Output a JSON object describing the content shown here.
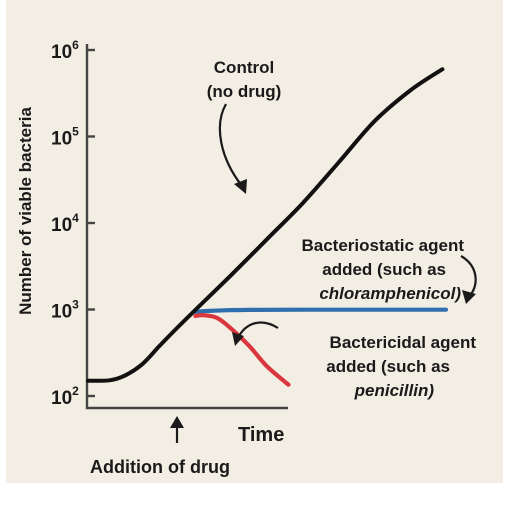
{
  "chart_data": {
    "type": "line",
    "title": "",
    "xlabel": "Time",
    "ylabel": "Number of viable bacteria",
    "y_scale": "log",
    "ylim": [
      100,
      1000000
    ],
    "y_ticks": [
      {
        "value": 100,
        "base": "10",
        "exp": "2"
      },
      {
        "value": 1000,
        "base": "10",
        "exp": "3"
      },
      {
        "value": 10000,
        "base": "10",
        "exp": "4"
      },
      {
        "value": 100000,
        "base": "10",
        "exp": "5"
      },
      {
        "value": 1000000,
        "base": "10",
        "exp": "6"
      }
    ],
    "xlim": [
      0,
      10
    ],
    "x_ticks": [],
    "grid": false,
    "series": [
      {
        "name": "",
        "color": "#111111",
        "x": [
          0,
          0.6,
          1.0,
          1.5,
          2.0,
          2.5,
          3.0,
          4.0,
          5.0,
          6.0,
          7.0,
          8.0,
          9.0,
          9.9
        ],
        "y": [
          150,
          152,
          170,
          230,
          380,
          620,
          990,
          2500,
          6500,
          17000,
          50000,
          150000,
          340000,
          600000
        ]
      },
      {
        "name": "",
        "color": "#2f6fad",
        "x": [
          3.0,
          3.3,
          3.8,
          4.5,
          6.0,
          8.0,
          10.0
        ],
        "y": [
          940,
          960,
          980,
          990,
          995,
          995,
          995
        ]
      },
      {
        "name": "",
        "color": "#d9363e",
        "x": [
          3.0,
          3.2,
          3.6,
          4.0,
          4.5,
          5.0,
          5.6
        ],
        "y": [
          840,
          860,
          800,
          600,
          380,
          220,
          135
        ]
      }
    ],
    "annotations": [
      {
        "id": "control",
        "lines": [
          {
            "text": "Control",
            "italic": false
          },
          {
            "text": "(no drug)",
            "italic": false
          }
        ]
      },
      {
        "id": "bacteriostatic",
        "lines": [
          {
            "text": "Bacteriostatic agent",
            "italic": false
          },
          {
            "text": "added (such as",
            "italic": false
          },
          {
            "text": "chloramphenicol)",
            "italic": true
          }
        ]
      },
      {
        "id": "bactericidal",
        "lines": [
          {
            "text": "Bactericidal agent",
            "italic": false
          },
          {
            "text": "added (such as",
            "italic": false
          },
          {
            "text": "penicillin)",
            "italic": true
          }
        ]
      }
    ],
    "drug_marker": {
      "x": 3.0,
      "label": "Addition of drug"
    }
  }
}
